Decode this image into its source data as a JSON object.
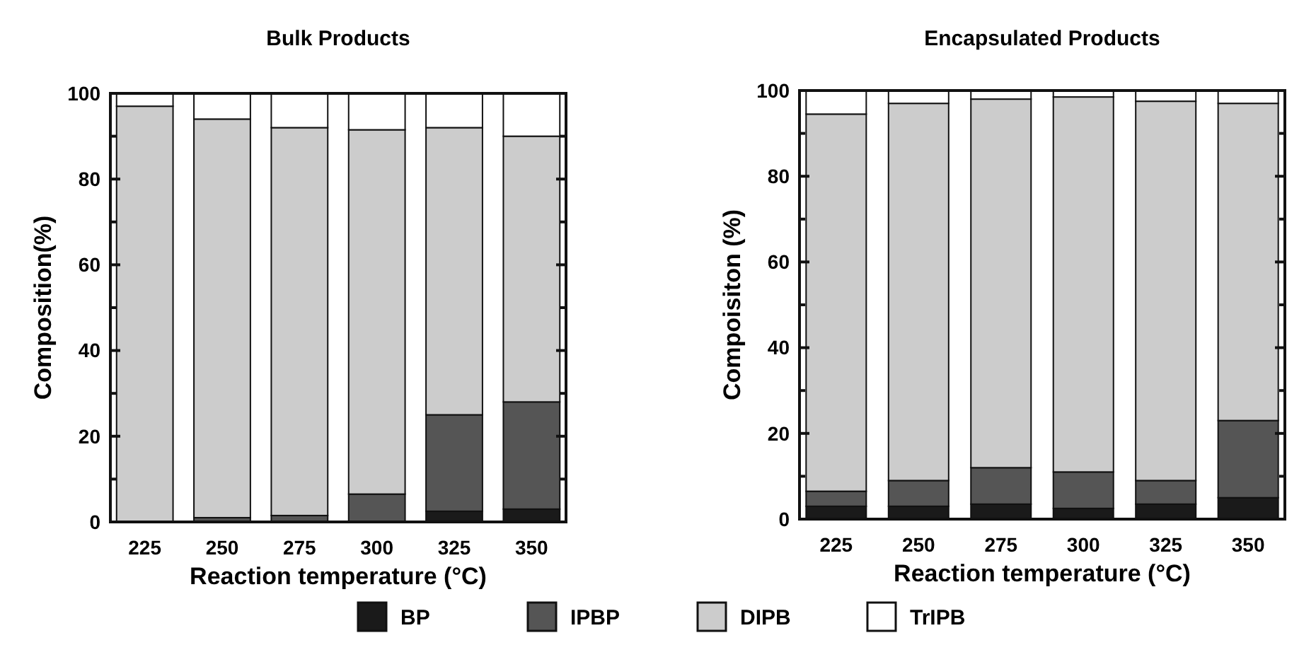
{
  "chart_data": [
    {
      "type": "bar",
      "title": "Bulk Products",
      "xlabel": "Reaction temperature (°C)",
      "ylabel": "Composition(%)",
      "categories": [
        "225",
        "250",
        "275",
        "300",
        "325",
        "350"
      ],
      "stacked": true,
      "legend": "bottom",
      "ylim": [
        0,
        100
      ],
      "yticks": [
        0,
        {
          "value": 10,
          "label": null
        },
        20,
        {
          "value": 30,
          "label": null
        },
        40,
        {
          "value": 50,
          "label": null
        },
        60,
        {
          "value": 70,
          "label": null
        },
        80,
        {
          "value": 90,
          "label": null
        },
        100
      ],
      "series": [
        {
          "name": "BP",
          "color": "#1a1a1a",
          "values": [
            0,
            0,
            0,
            0,
            2.5,
            3
          ]
        },
        {
          "name": "IPBP",
          "color": "#555555",
          "values": [
            0,
            1,
            1.5,
            6.5,
            22.5,
            25
          ]
        },
        {
          "name": "DIPB",
          "color": "#cccccc",
          "values": [
            97,
            93,
            90.5,
            85,
            67,
            62
          ]
        },
        {
          "name": "TrIPB",
          "color": "#ffffff",
          "values": [
            3,
            6,
            8,
            8.5,
            8,
            10
          ]
        }
      ]
    },
    {
      "type": "bar",
      "title": "Encapsulated Products",
      "xlabel": "Reaction temperature (°C)",
      "ylabel": "Compoisiton (%)",
      "categories": [
        "225",
        "250",
        "275",
        "300",
        "325",
        "350"
      ],
      "stacked": true,
      "ylim": [
        0,
        100
      ],
      "yticks": [
        0,
        {
          "value": 10,
          "label": null
        },
        20,
        {
          "value": 30,
          "label": null
        },
        40,
        {
          "value": 50,
          "label": null
        },
        60,
        {
          "value": 70,
          "label": null
        },
        80,
        {
          "value": 90,
          "label": null
        },
        100
      ],
      "series": [
        {
          "color": "#1a1a1a",
          "values": [
            3,
            3,
            3.5,
            2.5,
            3.5,
            5
          ]
        },
        {
          "color": "#555555",
          "values": [
            3.5,
            6,
            8.5,
            8.5,
            5.5,
            18
          ]
        },
        {
          "color": "#cccccc",
          "values": [
            88,
            88,
            86,
            87.5,
            88.5,
            74
          ]
        },
        {
          "color": "#ffffff",
          "values": [
            5.5,
            3,
            2,
            1.5,
            2.5,
            3
          ]
        }
      ]
    }
  ]
}
